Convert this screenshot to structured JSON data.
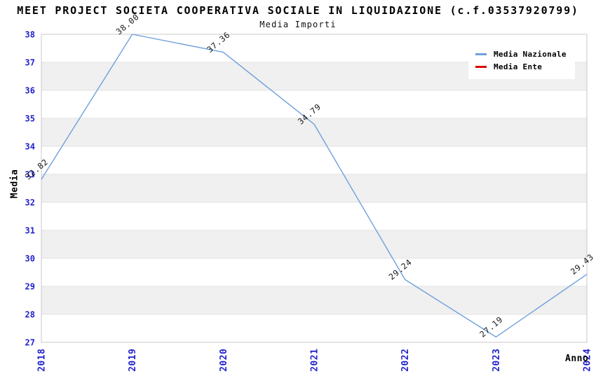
{
  "title": "MEET PROJECT SOCIETA COOPERATIVA SOCIALE IN LIQUIDAZIONE (c.f.03537920799)",
  "subtitle": "Media Importi",
  "colors": {
    "tick_label": "#2222cc",
    "band_gray": "#f0f0f0",
    "band_white": "#ffffff",
    "gridline": "#e2e2e2",
    "plot_border": "#c9c9c9",
    "point_label": "#151515"
  },
  "legend": {
    "items": [
      {
        "label": "Media Nazionale",
        "color": "#6ea0dc"
      },
      {
        "label": "Media Ente",
        "color": "#dd0000"
      }
    ]
  },
  "chart_data": {
    "type": "line",
    "title": "MEET PROJECT SOCIETA COOPERATIVA SOCIALE IN LIQUIDAZIONE (c.f.03537920799)",
    "subtitle": "Media Importi",
    "xlabel": "Anno",
    "ylabel": "Media",
    "x": [
      2018,
      2019,
      2020,
      2021,
      2022,
      2023,
      2024
    ],
    "series": [
      {
        "name": "Media Nazionale",
        "color": "#6ea0dc",
        "values": [
          32.82,
          38.0,
          37.36,
          34.79,
          29.24,
          27.19,
          29.43
        ],
        "point_labels": [
          "32.82",
          "38.00",
          "37.36",
          "34.79",
          "29.24",
          "27.19",
          "29.43"
        ]
      },
      {
        "name": "Media Ente",
        "color": "#dd0000",
        "values": []
      }
    ],
    "ylim": [
      27,
      38
    ],
    "y_tick_step": 1,
    "grid": "horizontal-bands",
    "legend_position": "top-right"
  }
}
